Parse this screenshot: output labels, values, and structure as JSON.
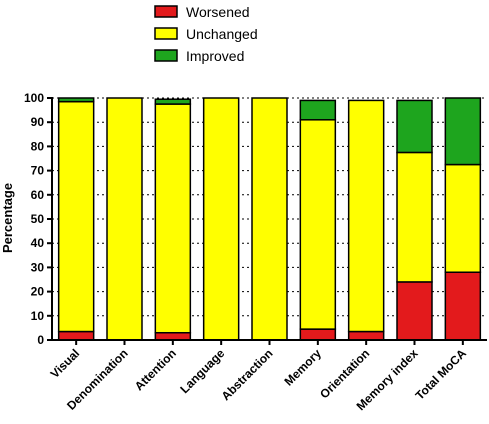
{
  "chart_data": {
    "type": "bar",
    "stacked": true,
    "ylabel": "Percentage",
    "ylim": [
      0,
      100
    ],
    "yticks": [
      0,
      10,
      20,
      30,
      40,
      50,
      60,
      70,
      80,
      90,
      100
    ],
    "grid": "horizontal dotted",
    "legend_position": "top",
    "categories": [
      "Visual",
      "Denomination",
      "Attention",
      "Language",
      "Abstraction",
      "Memory",
      "Orientation",
      "Memory index",
      "Total MoCA"
    ],
    "series": [
      {
        "name": "Worsened",
        "color": "#e31a1c",
        "values": [
          3.5,
          0,
          3,
          0,
          0,
          4.5,
          3.5,
          24,
          28
        ]
      },
      {
        "name": "Unchanged",
        "color": "#ffff00",
        "values": [
          95,
          100,
          94.5,
          100,
          100,
          86.5,
          95.5,
          53.5,
          44.5
        ]
      },
      {
        "name": "Improved",
        "color": "#1ea51e",
        "values": [
          1.5,
          0,
          2,
          0,
          0,
          8,
          0,
          21.5,
          27.5
        ]
      }
    ]
  }
}
